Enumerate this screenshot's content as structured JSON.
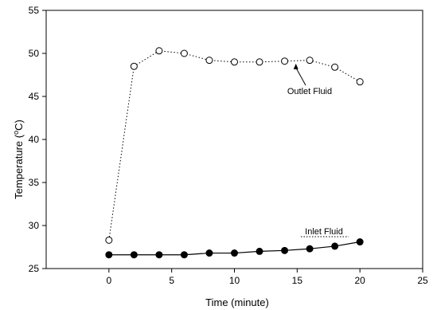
{
  "chart_data": {
    "type": "line",
    "xlabel": "Time (minute)",
    "ylabel_main": "Temperature (",
    "ylabel_sup": "o",
    "ylabel_end": "C)",
    "xlim": [
      -5,
      25
    ],
    "ylim": [
      25,
      55
    ],
    "xticks": [
      0,
      5,
      10,
      15,
      20,
      25
    ],
    "yticks": [
      25,
      30,
      35,
      40,
      45,
      50,
      55
    ],
    "grid": false,
    "series": [
      {
        "name": "Outlet Fluid",
        "marker": "open-circle",
        "line_style": "dotted",
        "x": [
          0,
          2,
          4,
          6,
          8,
          10,
          12,
          14,
          16,
          18,
          20
        ],
        "y": [
          28.3,
          48.5,
          50.3,
          50.0,
          49.2,
          49.0,
          49.0,
          49.1,
          49.2,
          48.4,
          46.7
        ]
      },
      {
        "name": "Inlet Fluid",
        "marker": "filled-circle",
        "line_style": "solid",
        "x": [
          0,
          2,
          4,
          6,
          8,
          10,
          12,
          14,
          16,
          18,
          20
        ],
        "y": [
          26.6,
          26.6,
          26.6,
          26.6,
          26.8,
          26.8,
          27.0,
          27.1,
          27.3,
          27.6,
          28.1
        ]
      }
    ],
    "annotations": [
      {
        "series": "Outlet Fluid",
        "text": "Outlet Fluid",
        "arrow": true
      },
      {
        "series": "Inlet Fluid",
        "text": "Inlet Fluid",
        "arrow": false
      }
    ]
  }
}
